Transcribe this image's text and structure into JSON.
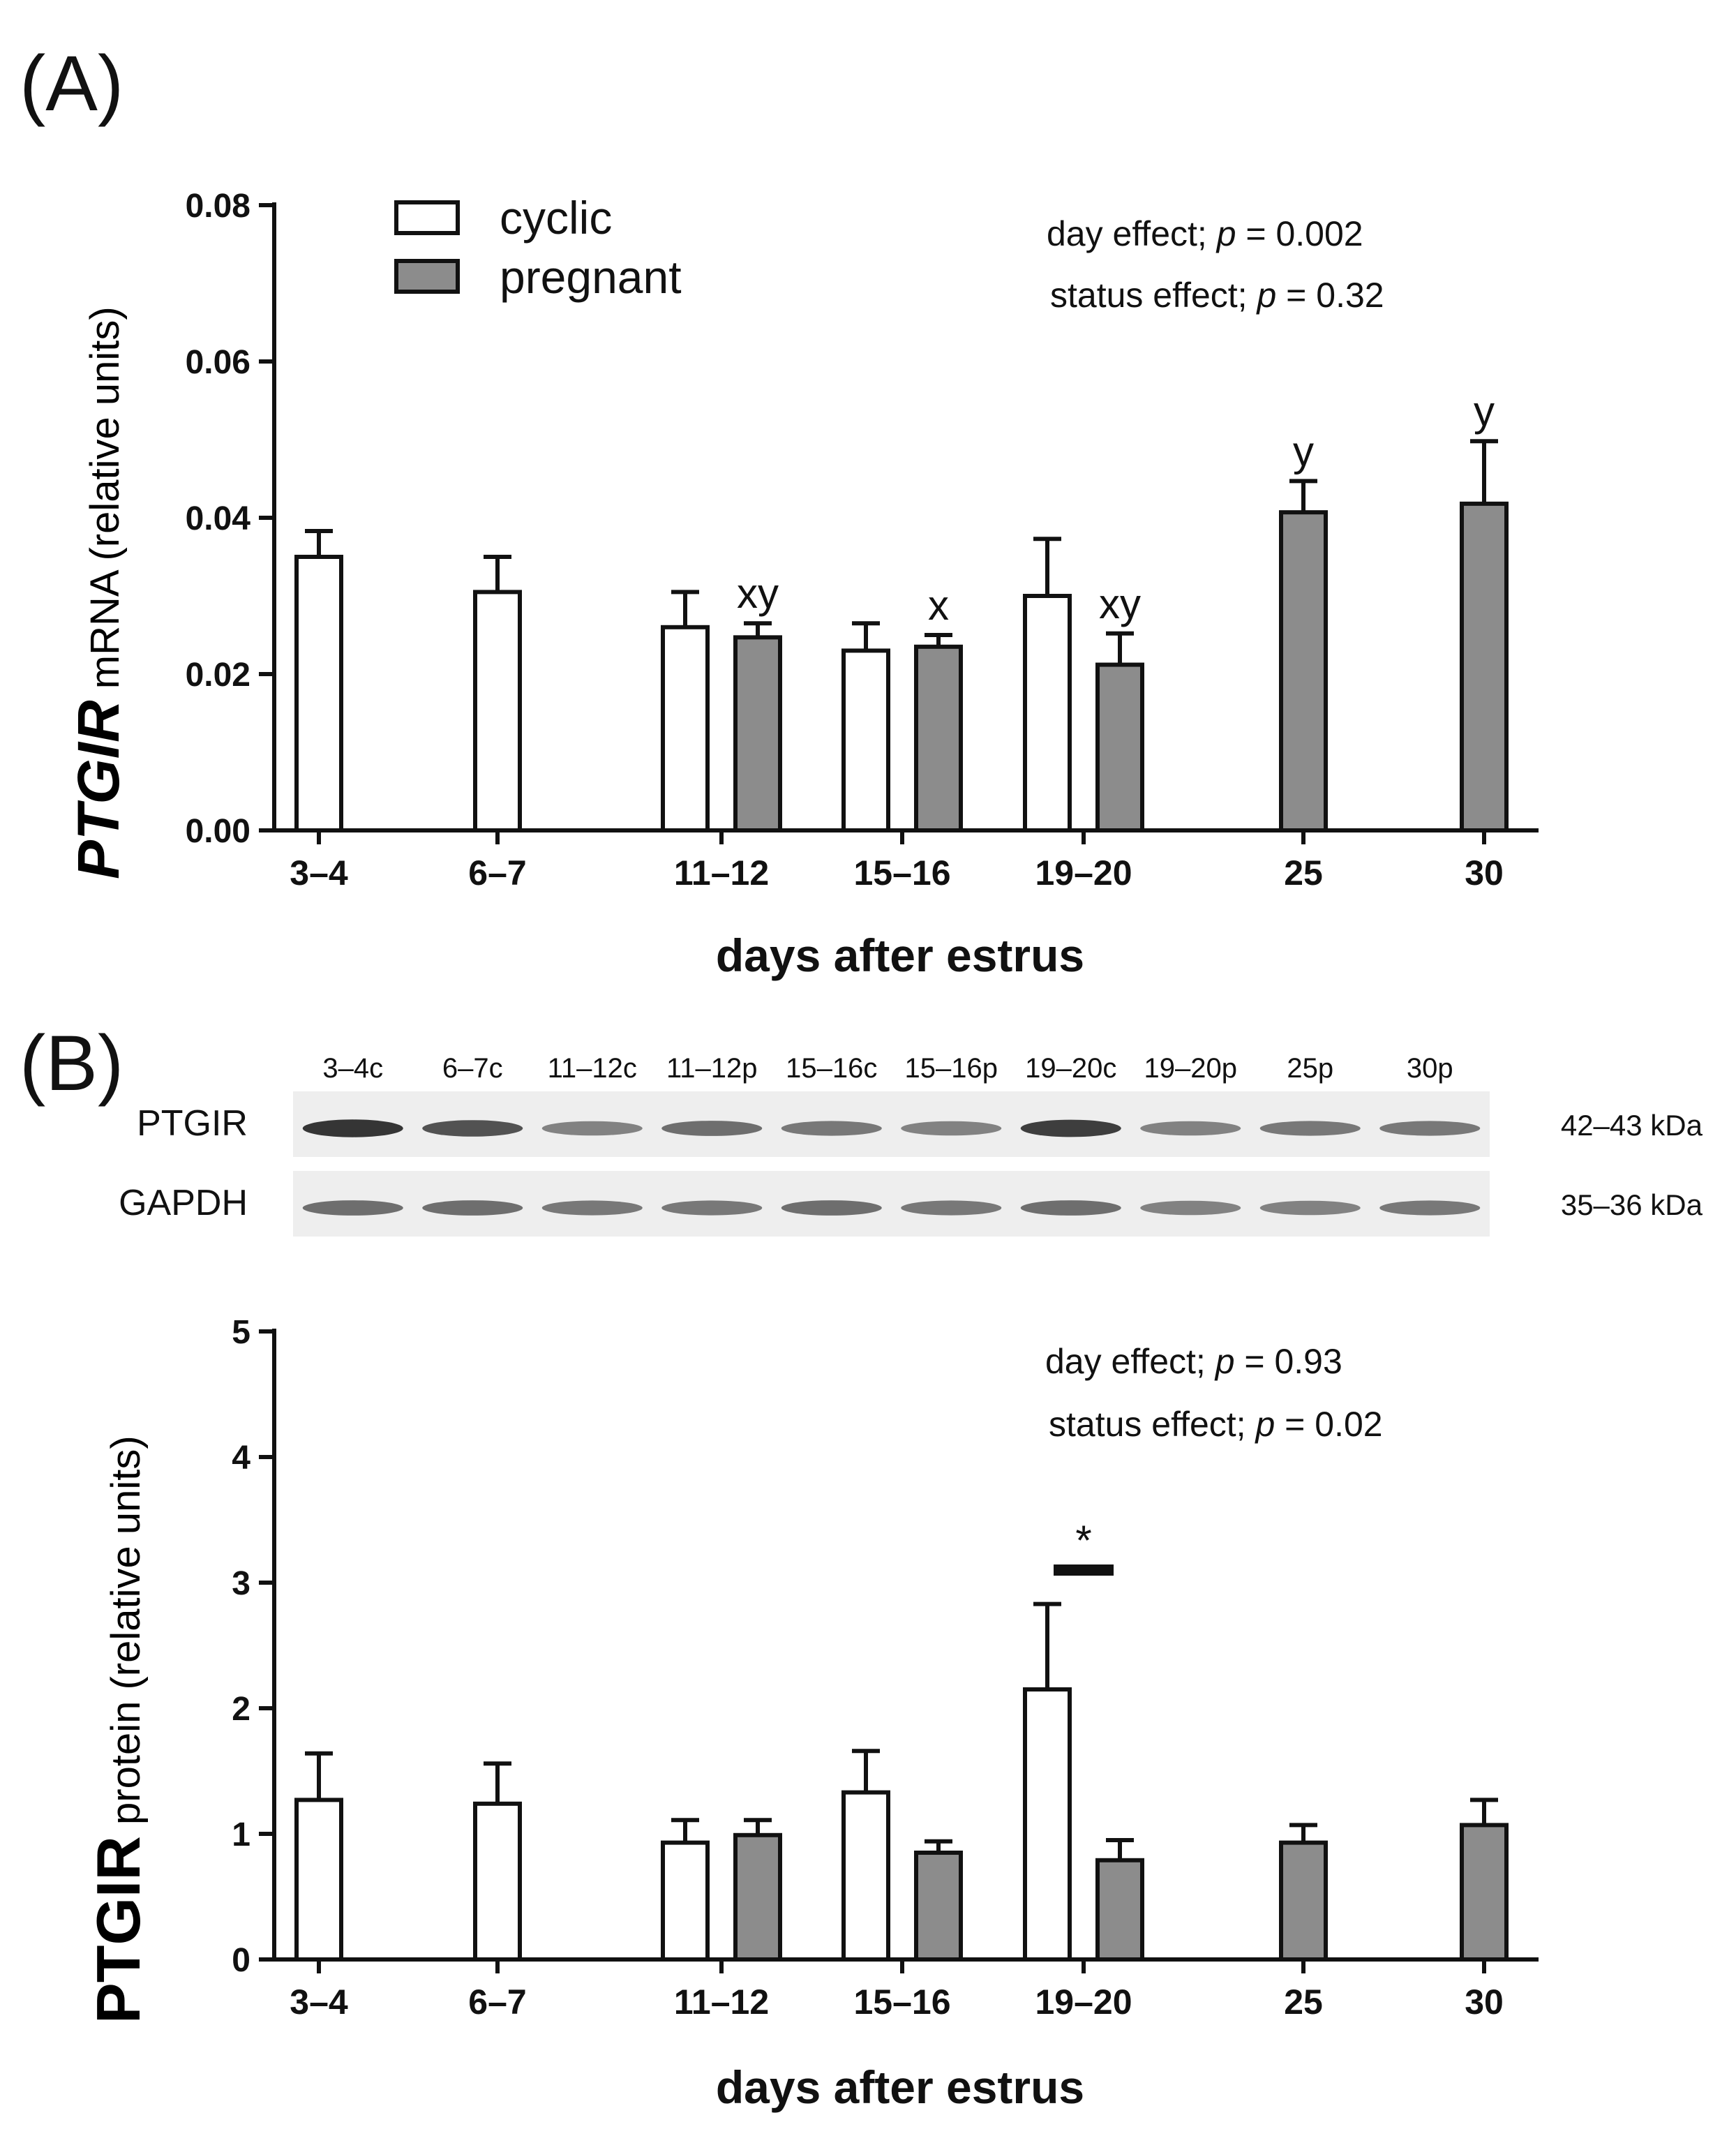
{
  "figure": {
    "panel_a_label": "(A)",
    "panel_b_label": "(B)"
  },
  "colors": {
    "cyclic": "#ffffff",
    "pregnant": "#8c8c8c",
    "stroke": "#111111",
    "blot_bg": "#eeeeee",
    "band": "#2a2a2a"
  },
  "chart_data": [
    {
      "type": "bar",
      "panel": "A",
      "ylabel_italic": "PTGIR",
      "ylabel_rest": " mRNA (relative units)",
      "xlabel": "days after estrus",
      "categories": [
        "3–4",
        "6–7",
        "11–12",
        "15–16",
        "19–20",
        "25",
        "30"
      ],
      "ylim": [
        0,
        0.08
      ],
      "yticks": [
        0,
        0.02,
        0.04,
        0.06,
        0.08
      ],
      "ytick_labels": [
        "0.00",
        "0.02",
        "0.04",
        "0.06",
        "0.08"
      ],
      "legend": [
        "cyclic",
        "pregnant"
      ],
      "series": [
        {
          "name": "cyclic",
          "values": [
            0.035,
            0.0305,
            0.026,
            0.023,
            0.03,
            null,
            null
          ],
          "errors": [
            0.0033,
            0.0045,
            0.0045,
            0.0035,
            0.0073,
            null,
            null
          ]
        },
        {
          "name": "pregnant",
          "values": [
            null,
            null,
            0.0247,
            0.0235,
            0.0212,
            0.0407,
            0.0418
          ],
          "errors": [
            null,
            null,
            0.0018,
            0.0015,
            0.004,
            0.004,
            0.008
          ]
        }
      ],
      "annotations": [
        {
          "category": 2,
          "series": "pregnant",
          "text": "xy"
        },
        {
          "category": 3,
          "series": "pregnant",
          "text": "x"
        },
        {
          "category": 4,
          "series": "pregnant",
          "text": "xy"
        },
        {
          "category": 5,
          "series": "pregnant",
          "text": "y"
        },
        {
          "category": 6,
          "series": "pregnant",
          "text": "y"
        }
      ],
      "stats": {
        "day": {
          "prefix": "day effect; ",
          "p": "p",
          "value": " = 0.002"
        },
        "status": {
          "prefix": "status effect; ",
          "p": "p",
          "value": " = 0.32"
        }
      }
    },
    {
      "type": "bar",
      "panel": "B",
      "ylabel_bold": "PTGIR",
      "ylabel_rest": " protein (relative units)",
      "xlabel": "days after estrus",
      "categories": [
        "3–4",
        "6–7",
        "11–12",
        "15–16",
        "19–20",
        "25",
        "30"
      ],
      "ylim": [
        0,
        5
      ],
      "yticks": [
        0,
        1,
        2,
        3,
        4,
        5
      ],
      "ytick_labels": [
        "0",
        "1",
        "2",
        "3",
        "4",
        "5"
      ],
      "series": [
        {
          "name": "cyclic",
          "values": [
            1.27,
            1.24,
            0.93,
            1.33,
            2.15,
            null,
            null
          ],
          "errors": [
            0.37,
            0.32,
            0.18,
            0.33,
            0.68,
            null,
            null
          ]
        },
        {
          "name": "pregnant",
          "values": [
            null,
            null,
            0.99,
            0.85,
            0.79,
            0.93,
            1.07
          ],
          "errors": [
            null,
            null,
            0.12,
            0.09,
            0.16,
            0.14,
            0.2
          ]
        }
      ],
      "significance": {
        "category": 4,
        "text": "*",
        "level": 3.1
      },
      "stats": {
        "day": {
          "prefix": "day effect; ",
          "p": "p",
          "value": " = 0.93"
        },
        "status": {
          "prefix": "status effect; ",
          "p": "p",
          "value": " = 0.02"
        }
      }
    }
  ],
  "blot": {
    "lanes": [
      "3–4c",
      "6–7c",
      "11–12c",
      "11–12p",
      "15–16c",
      "15–16p",
      "19–20c",
      "19–20p",
      "25p",
      "30p"
    ],
    "rows": [
      {
        "label": "PTGIR",
        "kda": "42–43 kDa",
        "intensity": [
          0.95,
          0.8,
          0.55,
          0.65,
          0.6,
          0.55,
          0.9,
          0.55,
          0.6,
          0.6
        ]
      },
      {
        "label": "GAPDH",
        "kda": "35–36 kDa",
        "intensity": [
          0.65,
          0.65,
          0.6,
          0.6,
          0.65,
          0.6,
          0.65,
          0.55,
          0.55,
          0.6
        ]
      }
    ]
  }
}
